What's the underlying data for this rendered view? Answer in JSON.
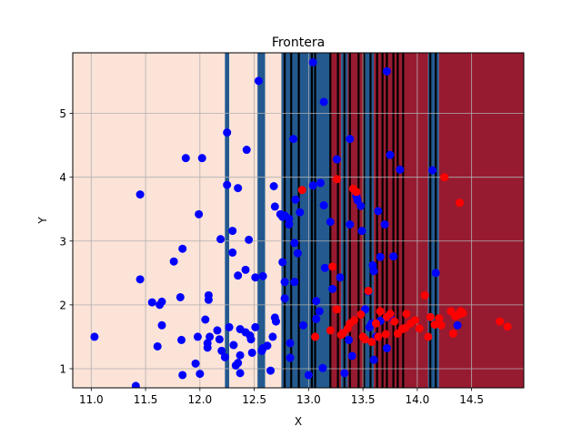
{
  "chart_data": {
    "type": "scatter",
    "title": "Frontera",
    "xlabel": "X",
    "ylabel": "Y",
    "xlim": [
      10.83,
      14.98
    ],
    "ylim": [
      0.7,
      5.95
    ],
    "x_ticks": [
      "11.0",
      "11.5",
      "12.0",
      "12.5",
      "13.0",
      "13.5",
      "14.0",
      "14.5"
    ],
    "y_ticks": [
      "1",
      "2",
      "3",
      "4",
      "5"
    ],
    "grid": true,
    "colors": {
      "class_0_point": "#0000ff",
      "class_1_point": "#ff0000",
      "class_0_region": "#fbe3d7",
      "class_1_region": "#971b30",
      "mid_region": "#23598e",
      "boundary": "#000000"
    },
    "decision_regions": [
      {
        "from": 10.83,
        "to": 12.23,
        "class": "class_0_region"
      },
      {
        "from": 12.23,
        "to": 12.27,
        "class": "mid_region"
      },
      {
        "from": 12.27,
        "to": 12.53,
        "class": "class_0_region"
      },
      {
        "from": 12.53,
        "to": 12.6,
        "class": "mid_region"
      },
      {
        "from": 12.6,
        "to": 12.75,
        "class": "class_0_region"
      },
      {
        "from": 12.75,
        "to": 13.2,
        "class": "mid_region"
      },
      {
        "from": 13.2,
        "to": 13.3,
        "class": "class_1_region"
      },
      {
        "from": 13.3,
        "to": 13.36,
        "class": "mid_region"
      },
      {
        "from": 13.36,
        "to": 13.52,
        "class": "class_1_region"
      },
      {
        "from": 13.52,
        "to": 13.6,
        "class": "mid_region"
      },
      {
        "from": 13.6,
        "to": 14.1,
        "class": "class_1_region"
      },
      {
        "from": 14.1,
        "to": 14.2,
        "class": "mid_region"
      },
      {
        "from": 14.2,
        "to": 14.98,
        "class": "class_1_region"
      }
    ],
    "boundary_lines_x": [
      12.78,
      12.84,
      12.91,
      13.03,
      13.06,
      13.2,
      13.27,
      13.33,
      13.38,
      13.46,
      13.51,
      13.57,
      13.63,
      13.68,
      13.72,
      13.78,
      13.82,
      13.87,
      14.12,
      14.17
    ],
    "series": [
      {
        "class": "class_0_point",
        "points": [
          [
            11.03,
            1.5
          ],
          [
            11.41,
            0.73
          ],
          [
            11.45,
            3.73
          ],
          [
            11.45,
            2.4
          ],
          [
            11.56,
            2.04
          ],
          [
            11.61,
            1.35
          ],
          [
            11.63,
            2.0
          ],
          [
            11.65,
            2.05
          ],
          [
            11.65,
            1.68
          ],
          [
            11.76,
            2.68
          ],
          [
            11.82,
            2.12
          ],
          [
            11.83,
            1.45
          ],
          [
            11.84,
            0.9
          ],
          [
            11.84,
            2.88
          ],
          [
            11.87,
            4.3
          ],
          [
            11.96,
            1.08
          ],
          [
            11.98,
            1.5
          ],
          [
            11.99,
            3.42
          ],
          [
            12.0,
            0.92
          ],
          [
            12.02,
            4.3
          ],
          [
            12.05,
            1.77
          ],
          [
            12.07,
            1.4
          ],
          [
            12.07,
            1.33
          ],
          [
            12.09,
            1.5
          ],
          [
            12.08,
            2.15
          ],
          [
            12.08,
            2.08
          ],
          [
            12.16,
            1.6
          ],
          [
            12.18,
            1.46
          ],
          [
            12.19,
            3.03
          ],
          [
            12.2,
            1.28
          ],
          [
            12.23,
            1.18
          ],
          [
            12.25,
            4.7
          ],
          [
            12.25,
            3.88
          ],
          [
            12.27,
            1.65
          ],
          [
            12.3,
            3.16
          ],
          [
            12.3,
            2.82
          ],
          [
            12.31,
            1.37
          ],
          [
            12.33,
            1.05
          ],
          [
            12.35,
            2.46
          ],
          [
            12.35,
            1.09
          ],
          [
            12.35,
            3.83
          ],
          [
            12.37,
            0.93
          ],
          [
            12.37,
            1.62
          ],
          [
            12.37,
            1.21
          ],
          [
            12.42,
            1.57
          ],
          [
            12.42,
            2.55
          ],
          [
            12.43,
            4.43
          ],
          [
            12.45,
            3.02
          ],
          [
            12.46,
            1.52
          ],
          [
            12.47,
            1.46
          ],
          [
            12.48,
            1.25
          ],
          [
            12.51,
            2.43
          ],
          [
            12.51,
            1.65
          ],
          [
            12.54,
            5.51
          ],
          [
            12.57,
            1.28
          ],
          [
            12.58,
            1.32
          ],
          [
            12.58,
            2.45
          ],
          [
            12.62,
            1.36
          ],
          [
            12.65,
            0.97
          ],
          [
            12.67,
            1.5
          ],
          [
            12.68,
            3.86
          ],
          [
            12.69,
            3.54
          ],
          [
            12.69,
            1.8
          ],
          [
            12.7,
            1.74
          ],
          [
            12.74,
            3.42
          ],
          [
            12.76,
            3.38
          ],
          [
            12.76,
            2.67
          ],
          [
            12.78,
            2.36
          ],
          [
            12.78,
            2.1
          ],
          [
            12.78,
            3.4
          ],
          [
            12.82,
            3.35
          ],
          [
            12.82,
            3.26
          ],
          [
            12.83,
            1.4
          ],
          [
            12.83,
            1.17
          ],
          [
            12.86,
            4.6
          ],
          [
            12.87,
            2.97
          ],
          [
            12.87,
            2.36
          ],
          [
            12.88,
            3.65
          ],
          [
            12.9,
            2.81
          ],
          [
            12.92,
            3.45
          ],
          [
            12.95,
            1.68
          ],
          [
            13.0,
            0.9
          ],
          [
            13.04,
            5.8
          ],
          [
            13.04,
            3.87
          ],
          [
            13.07,
            2.06
          ],
          [
            13.07,
            1.78
          ],
          [
            13.1,
            1.9
          ],
          [
            13.11,
            3.91
          ],
          [
            13.13,
            1.01
          ],
          [
            13.14,
            3.56
          ],
          [
            13.14,
            5.18
          ],
          [
            13.15,
            2.58
          ],
          [
            13.2,
            3.3
          ],
          [
            13.22,
            2.25
          ],
          [
            13.26,
            4.28
          ],
          [
            13.29,
            2.43
          ],
          [
            13.33,
            0.93
          ],
          [
            13.37,
            1.45
          ],
          [
            13.38,
            4.6
          ],
          [
            13.38,
            3.26
          ],
          [
            13.4,
            1.2
          ],
          [
            13.44,
            3.7
          ],
          [
            13.45,
            3.64
          ],
          [
            13.48,
            3.55
          ],
          [
            13.49,
            3.16
          ],
          [
            13.52,
            1.93
          ],
          [
            13.55,
            2.21
          ],
          [
            13.56,
            1.65
          ],
          [
            13.58,
            1.71
          ],
          [
            13.59,
            2.62
          ],
          [
            13.6,
            1.14
          ],
          [
            13.6,
            2.53
          ],
          [
            13.62,
            1.5
          ],
          [
            13.64,
            3.47
          ],
          [
            13.66,
            2.75
          ],
          [
            13.66,
            1.75
          ],
          [
            13.7,
            3.26
          ],
          [
            13.72,
            5.66
          ],
          [
            13.72,
            1.32
          ],
          [
            13.75,
            1.81
          ],
          [
            13.75,
            4.35
          ],
          [
            13.78,
            2.76
          ],
          [
            13.84,
            4.12
          ],
          [
            14.14,
            4.11
          ],
          [
            14.17,
            2.5
          ],
          [
            14.37,
            1.68
          ]
        ]
      },
      {
        "class": "class_1_point",
        "points": [
          [
            12.94,
            3.8
          ],
          [
            13.06,
            1.5
          ],
          [
            13.2,
            1.6
          ],
          [
            13.22,
            2.6
          ],
          [
            13.26,
            3.97
          ],
          [
            13.26,
            1.93
          ],
          [
            13.3,
            1.53
          ],
          [
            13.32,
            1.56
          ],
          [
            13.36,
            1.63
          ],
          [
            13.38,
            1.71
          ],
          [
            13.41,
            3.82
          ],
          [
            13.42,
            1.76
          ],
          [
            13.44,
            3.77
          ],
          [
            13.48,
            1.85
          ],
          [
            13.5,
            1.5
          ],
          [
            13.52,
            1.46
          ],
          [
            13.55,
            2.22
          ],
          [
            13.58,
            1.42
          ],
          [
            13.62,
            1.71
          ],
          [
            13.64,
            1.5
          ],
          [
            13.66,
            1.9
          ],
          [
            13.71,
            1.54
          ],
          [
            13.72,
            1.81
          ],
          [
            13.75,
            1.86
          ],
          [
            13.79,
            1.74
          ],
          [
            13.82,
            1.55
          ],
          [
            13.86,
            1.62
          ],
          [
            13.89,
            1.64
          ],
          [
            13.9,
            1.86
          ],
          [
            13.94,
            1.71
          ],
          [
            13.98,
            1.76
          ],
          [
            14.02,
            1.63
          ],
          [
            14.07,
            2.15
          ],
          [
            14.1,
            1.5
          ],
          [
            14.12,
            1.81
          ],
          [
            14.16,
            1.69
          ],
          [
            14.2,
            1.79
          ],
          [
            14.22,
            1.68
          ],
          [
            14.25,
            4.0
          ],
          [
            14.31,
            1.9
          ],
          [
            14.33,
            1.55
          ],
          [
            14.35,
            1.82
          ],
          [
            14.38,
            1.85
          ],
          [
            14.4,
            1.9
          ],
          [
            14.39,
            3.6
          ],
          [
            14.42,
            1.87
          ],
          [
            14.76,
            1.74
          ],
          [
            14.83,
            1.66
          ]
        ]
      }
    ]
  }
}
